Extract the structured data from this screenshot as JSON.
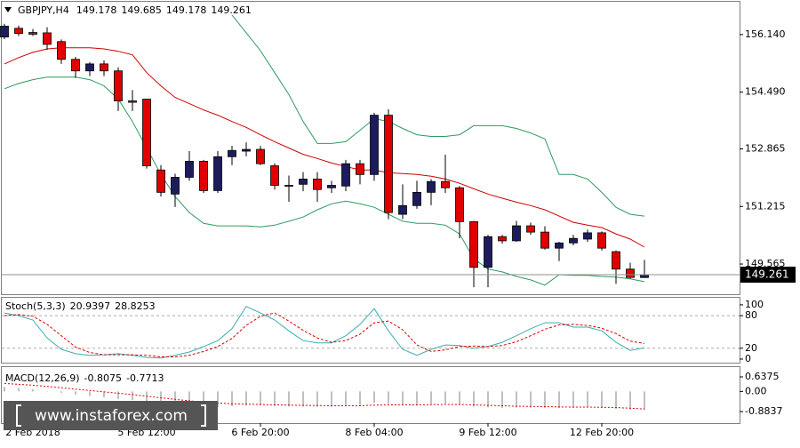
{
  "chart_data": [
    {
      "type": "candlestick",
      "title": "GBPJPY,H4",
      "categories": [
        null,
        null,
        "2 Feb 2018",
        null,
        null,
        null,
        null,
        null,
        null,
        null,
        "5 Feb 12:00",
        null,
        null,
        null,
        null,
        null,
        null,
        null,
        "6 Feb 20:00",
        null,
        null,
        null,
        null,
        null,
        null,
        null,
        "8 Feb 04:00",
        null,
        null,
        null,
        null,
        null,
        null,
        null,
        "9 Feb 12:00",
        null,
        null,
        null,
        null,
        null,
        null,
        null,
        "12 Feb 20:00",
        null,
        null,
        null
      ],
      "open": [
        156.07,
        156.32,
        156.2,
        156.19,
        155.94,
        155.43,
        155.1,
        155.3,
        155.1,
        154.24,
        154.29,
        152.26,
        151.57,
        152.05,
        152.51,
        151.67,
        152.64,
        152.8,
        152.85,
        152.38,
        151.82,
        151.85,
        152.0,
        151.75,
        151.8,
        152.44,
        152.13,
        153.83,
        150.99,
        151.24,
        151.62,
        151.93,
        151.75,
        150.78,
        149.47,
        150.35,
        150.23,
        150.66,
        150.48,
        150.02,
        150.17,
        150.28,
        150.46,
        149.92,
        149.42,
        149.178
      ],
      "high": [
        156.45,
        156.4,
        156.3,
        156.35,
        156.0,
        155.5,
        155.35,
        155.4,
        155.2,
        154.55,
        154.3,
        152.4,
        152.15,
        152.8,
        152.55,
        152.8,
        152.95,
        153.05,
        152.95,
        152.45,
        152.1,
        152.2,
        152.2,
        151.95,
        152.55,
        152.55,
        153.9,
        154.0,
        151.85,
        151.95,
        152.0,
        152.7,
        151.8,
        150.8,
        150.4,
        150.4,
        150.8,
        150.75,
        150.65,
        150.2,
        150.4,
        150.55,
        150.5,
        149.95,
        149.6,
        149.685
      ],
      "low": [
        156.01,
        156.1,
        156.1,
        155.7,
        155.3,
        154.9,
        154.95,
        154.95,
        153.95,
        153.95,
        152.3,
        151.5,
        151.2,
        151.95,
        151.6,
        151.6,
        152.4,
        152.65,
        152.4,
        151.7,
        151.35,
        151.65,
        151.35,
        151.6,
        151.65,
        151.85,
        151.95,
        150.85,
        150.85,
        151.15,
        151.25,
        151.6,
        150.3,
        148.9,
        148.9,
        150.15,
        150.2,
        150.4,
        149.98,
        149.65,
        150.1,
        150.2,
        149.95,
        149.0,
        149.15,
        149.178
      ],
      "close": [
        156.38,
        156.17,
        156.15,
        155.86,
        155.43,
        155.1,
        155.3,
        155.1,
        154.24,
        154.2,
        152.38,
        151.62,
        152.05,
        152.51,
        151.67,
        152.64,
        152.82,
        152.85,
        152.44,
        151.82,
        151.8,
        152.0,
        151.7,
        151.82,
        152.44,
        152.13,
        153.83,
        151.04,
        151.24,
        151.62,
        151.93,
        151.75,
        150.78,
        149.47,
        150.35,
        150.23,
        150.66,
        150.48,
        150.02,
        150.17,
        150.3,
        150.46,
        150.02,
        149.42,
        149.18,
        149.261
      ],
      "up_color": "#1c1c5c",
      "down_color": "#e00000",
      "lines": [
        {
          "color": "#d00000",
          "values": [
            155.3,
            155.48,
            155.63,
            155.73,
            155.76,
            155.76,
            155.76,
            155.73,
            155.66,
            155.56,
            155.05,
            154.67,
            154.34,
            154.16,
            153.98,
            153.83,
            153.65,
            153.48,
            153.27,
            153.07,
            152.89,
            152.71,
            152.59,
            152.46,
            152.36,
            152.26,
            152.26,
            152.18,
            152.16,
            152.13,
            152.08,
            152.0,
            151.88,
            151.72,
            151.57,
            151.45,
            151.34,
            151.24,
            151.12,
            150.94,
            150.76,
            150.68,
            150.61,
            150.43,
            150.28,
            150.05
          ]
        },
        {
          "color": "#2e9b5e",
          "values": [
            null,
            null,
            null,
            null,
            null,
            null,
            null,
            null,
            null,
            null,
            null,
            null,
            null,
            null,
            null,
            null,
            156.7,
            156.19,
            155.68,
            155.05,
            154.42,
            153.65,
            153.02,
            153.02,
            153.07,
            153.4,
            153.73,
            153.65,
            153.45,
            153.27,
            153.22,
            153.22,
            153.27,
            153.53,
            153.53,
            153.53,
            153.45,
            153.32,
            153.15,
            152.13,
            152.13,
            152.0,
            151.62,
            151.19,
            150.99,
            150.94
          ]
        },
        {
          "color": "#2e9b5e",
          "values": [
            154.59,
            154.74,
            154.85,
            154.92,
            154.92,
            154.92,
            154.85,
            154.67,
            154.29,
            153.65,
            152.89,
            152.13,
            151.5,
            151.04,
            150.73,
            150.66,
            150.66,
            150.66,
            150.63,
            150.68,
            150.79,
            150.91,
            151.12,
            151.29,
            151.37,
            151.29,
            151.19,
            150.99,
            150.79,
            150.73,
            150.73,
            150.68,
            150.43,
            149.72,
            149.42,
            149.34,
            149.21,
            149.11,
            148.96,
            149.26,
            149.24,
            149.24,
            149.21,
            149.19,
            149.14,
            149.06
          ]
        }
      ],
      "ylim": [
        148.7,
        157.08
      ],
      "yticks": [
        {
          "value": 156.14,
          "label": "156.140"
        },
        {
          "value": 154.49,
          "label": "154.490"
        },
        152.865,
        151.215,
        149.565
      ]
    },
    {
      "type": "line",
      "title": "Stoch(5,3,3)",
      "series": [
        {
          "color": "#3aaeb0",
          "values": [
            85,
            80,
            72,
            39,
            18,
            10,
            7,
            8,
            10,
            7,
            3,
            2,
            7,
            13,
            23,
            34,
            56,
            97,
            85,
            72,
            52,
            34,
            30,
            30,
            43,
            64,
            93,
            52,
            18,
            7,
            18,
            26,
            25,
            20,
            23,
            31,
            43,
            56,
            67,
            67,
            59,
            59,
            52,
            31,
            16,
            20.9397
          ]
        },
        {
          "color": "#e00000",
          "dash": true,
          "values": [
            80,
            82,
            79,
            64,
            43,
            22,
            12,
            8,
            8,
            8,
            7,
            4,
            4,
            7,
            14,
            23,
            38,
            62,
            79,
            85,
            70,
            53,
            39,
            31,
            34,
            46,
            67,
            70,
            54,
            26,
            14,
            17,
            23,
            24,
            23,
            25,
            32,
            43,
            55,
            63,
            64,
            62,
            57,
            47,
            33,
            28.8253
          ]
        }
      ],
      "ylim": [
        -6.6,
        113
      ],
      "yticks": [
        100,
        80,
        20,
        0
      ],
      "levels": [
        80,
        20
      ]
    },
    {
      "type": "macd",
      "title": "MACD(12,26,9)",
      "color": "#c0c0c0",
      "values": [
        0.2,
        0.15,
        0.1,
        0.02,
        -0.06,
        -0.14,
        -0.2,
        -0.26,
        -0.33,
        -0.38,
        -0.48,
        -0.58,
        -0.64,
        -0.66,
        -0.69,
        -0.68,
        -0.65,
        -0.62,
        -0.62,
        -0.64,
        -0.66,
        -0.66,
        -0.67,
        -0.67,
        -0.63,
        -0.6,
        -0.5,
        -0.55,
        -0.58,
        -0.58,
        -0.55,
        -0.53,
        -0.56,
        -0.66,
        -0.7,
        -0.72,
        -0.71,
        -0.71,
        -0.72,
        -0.73,
        -0.72,
        -0.71,
        -0.72,
        -0.77,
        -0.8,
        -0.8075
      ],
      "signal": {
        "color": "#e00000",
        "values": [
          0.35,
          0.31,
          0.27,
          0.22,
          0.16,
          0.1,
          0.04,
          -0.02,
          -0.08,
          -0.14,
          -0.21,
          -0.28,
          -0.35,
          -0.41,
          -0.47,
          -0.51,
          -0.54,
          -0.56,
          -0.57,
          -0.59,
          -0.6,
          -0.61,
          -0.62,
          -0.63,
          -0.63,
          -0.63,
          -0.6,
          -0.59,
          -0.59,
          -0.59,
          -0.58,
          -0.57,
          -0.57,
          -0.59,
          -0.61,
          -0.63,
          -0.65,
          -0.66,
          -0.67,
          -0.68,
          -0.69,
          -0.69,
          -0.7,
          -0.71,
          -0.74,
          -0.7713
        ]
      },
      "ylim": [
        -1.391,
        1.067
      ],
      "yticks": [
        0.6375,
        {
          "value": 0,
          "label": "0.00"
        },
        -0.8837
      ]
    }
  ],
  "watermark": "www.instaforex.com"
}
